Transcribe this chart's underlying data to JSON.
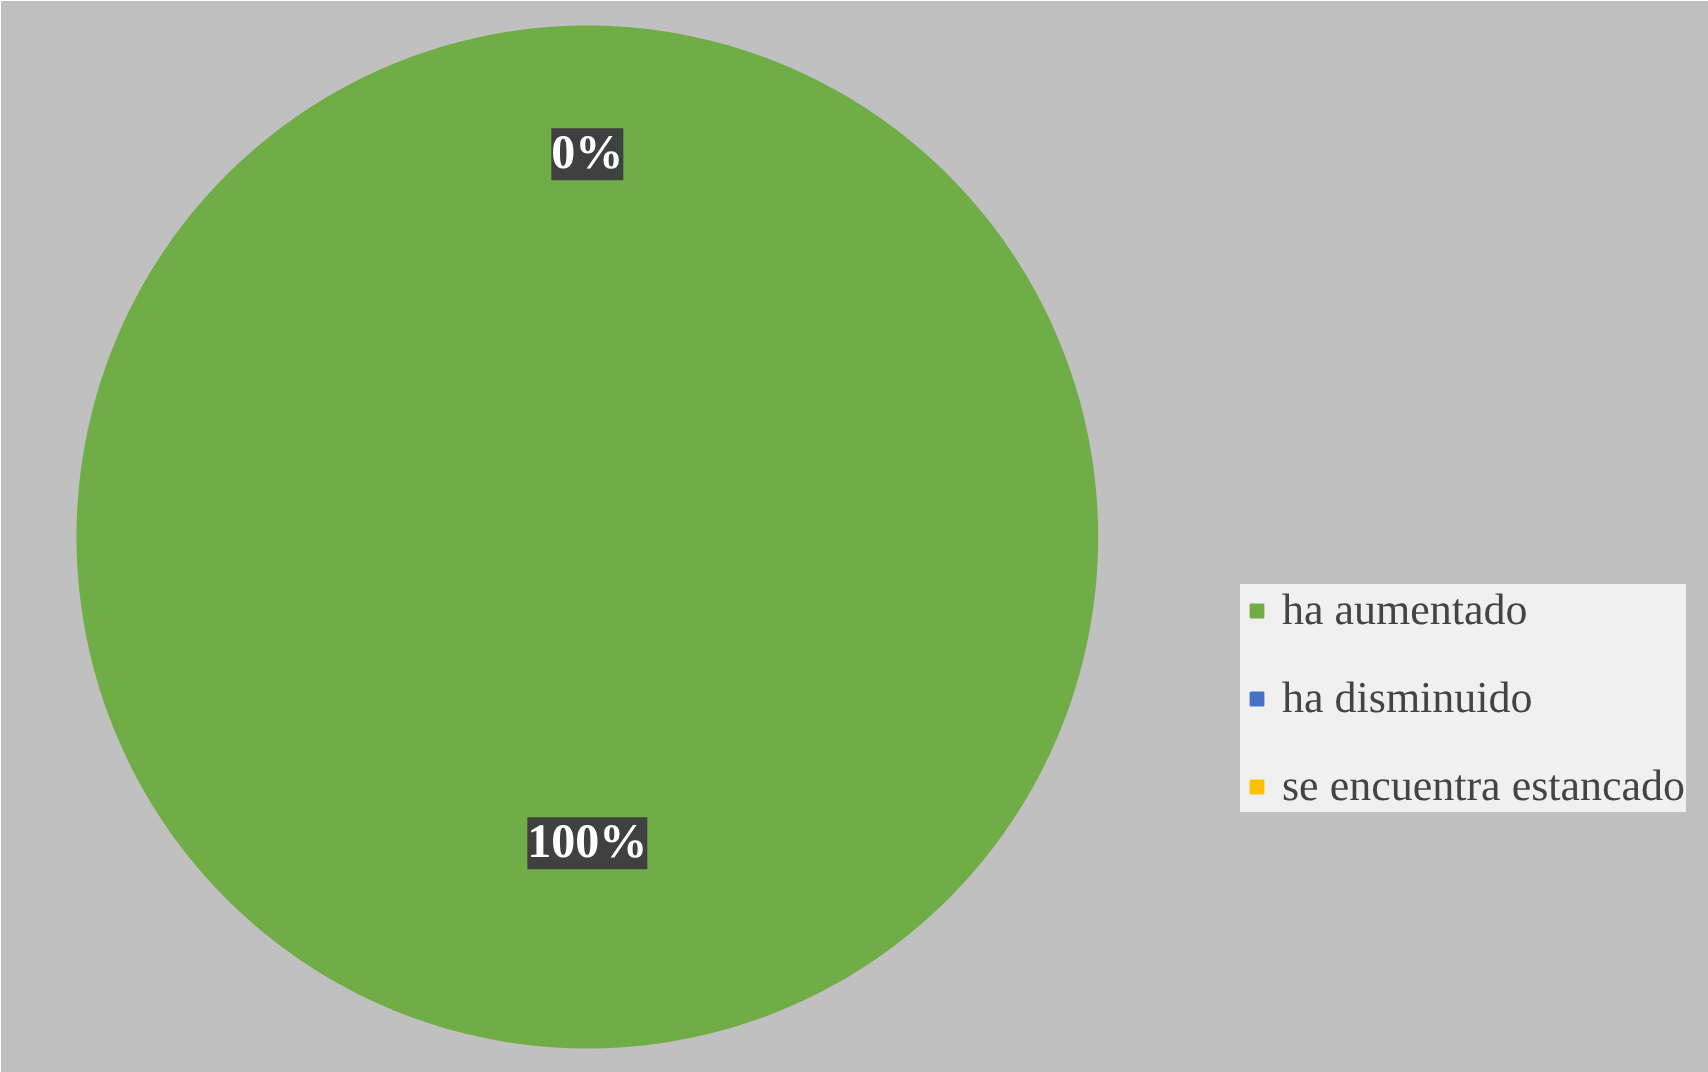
{
  "chart_data": {
    "type": "pie",
    "categories": [
      "ha aumentado",
      "ha disminuido",
      "se encuentra estancado"
    ],
    "values": [
      100,
      0,
      0
    ],
    "colors": [
      "#70ad47",
      "#4472c4",
      "#ffc000"
    ],
    "value_labels": [
      "100%",
      "0%",
      null
    ],
    "legend": "right"
  }
}
